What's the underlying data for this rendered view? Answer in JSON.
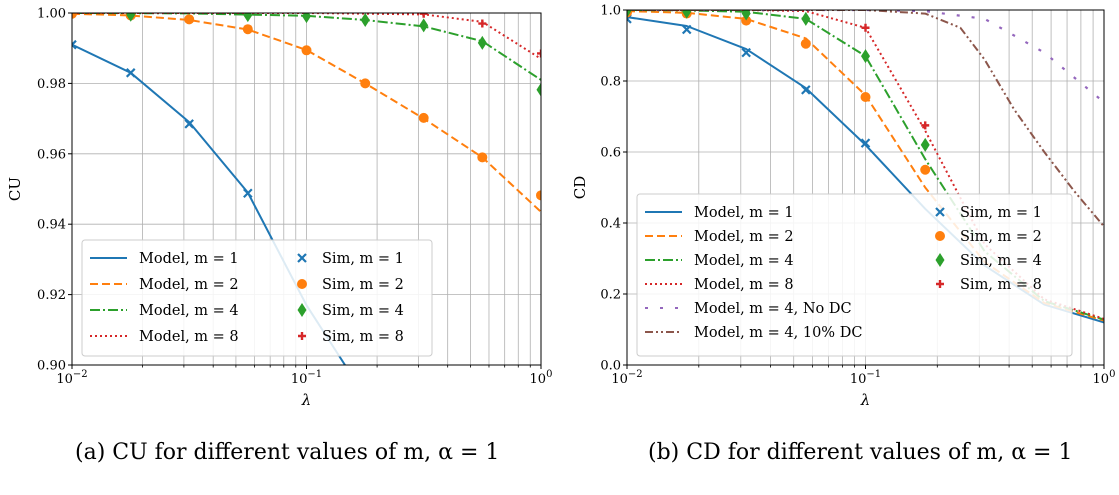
{
  "captions": [
    "(a) CU for different values of m, α = 1",
    "(b) CD for different values of m, α = 1"
  ],
  "colors": {
    "m1": "#1f77b4",
    "m2": "#ff7f0e",
    "m4": "#2ca02c",
    "m8": "#d62728",
    "nodc": "#9467bd",
    "dc10": "#8c564b"
  },
  "chart_data": [
    {
      "type": "line",
      "xlabel": "λ",
      "ylabel": "CU",
      "xscale": "log",
      "xlim": [
        0.01,
        1
      ],
      "ylim": [
        0.9,
        1.0
      ],
      "grid": true,
      "legend_position": "lower-left",
      "xticks": [
        "10−2",
        "10−1",
        "100"
      ],
      "yticks": [
        "0.90",
        "0.92",
        "0.94",
        "0.96",
        "0.98",
        "1.00"
      ],
      "series": [
        {
          "name": "Model, m = 1",
          "key": "m1",
          "kind": "model",
          "style": "solid",
          "x": [
            0.01,
            0.0178,
            0.0316,
            0.0562,
            0.1,
            0.146
          ],
          "y": [
            0.991,
            0.983,
            0.969,
            0.949,
            0.917,
            0.9
          ]
        },
        {
          "name": "Model, m = 2",
          "key": "m2",
          "kind": "model",
          "style": "dashed",
          "x": [
            0.01,
            0.0178,
            0.0316,
            0.0562,
            0.1,
            0.178,
            0.316,
            0.562,
            1.0
          ],
          "y": [
            0.9998,
            0.9993,
            0.998,
            0.9953,
            0.9895,
            0.98,
            0.97,
            0.959,
            0.9435
          ]
        },
        {
          "name": "Model, m = 4",
          "key": "m4",
          "kind": "model",
          "style": "dashdot",
          "x": [
            0.01,
            0.0316,
            0.1,
            0.178,
            0.316,
            0.562,
            1.0
          ],
          "y": [
            1.0,
            0.9999,
            0.9992,
            0.998,
            0.9962,
            0.992,
            0.981
          ]
        },
        {
          "name": "Model, m = 8",
          "key": "m8",
          "kind": "model",
          "style": "dotted",
          "x": [
            0.01,
            0.1,
            0.316,
            0.562,
            1.0
          ],
          "y": [
            1.0,
            1.0,
            0.9996,
            0.9975,
            0.987
          ]
        },
        {
          "name": "Sim, m = 1",
          "key": "m1",
          "kind": "sim",
          "marker": "x",
          "x": [
            0.01,
            0.0178,
            0.0316,
            0.0562
          ],
          "y": [
            0.991,
            0.983,
            0.9685,
            0.9488
          ]
        },
        {
          "name": "Sim, m = 2",
          "key": "m2",
          "kind": "sim",
          "marker": "circle",
          "x": [
            0.01,
            0.0178,
            0.0316,
            0.0562,
            0.1,
            0.178,
            0.316,
            0.562,
            1.0
          ],
          "y": [
            0.9998,
            0.9993,
            0.9982,
            0.9954,
            0.9894,
            0.98,
            0.9702,
            0.959,
            0.9482
          ]
        },
        {
          "name": "Sim, m = 4",
          "key": "m4",
          "kind": "sim",
          "marker": "diamond",
          "x": [
            0.0178,
            0.0562,
            0.1,
            0.178,
            0.316,
            0.562,
            1.0
          ],
          "y": [
            0.9995,
            0.9994,
            0.9991,
            0.998,
            0.9965,
            0.9915,
            0.9782
          ]
        },
        {
          "name": "Sim, m = 8",
          "key": "m8",
          "kind": "sim",
          "marker": "plus",
          "x": [
            0.316,
            0.562,
            1.0
          ],
          "y": [
            0.9998,
            0.997,
            0.9885
          ]
        }
      ]
    },
    {
      "type": "line",
      "xlabel": "λ",
      "ylabel": "CD",
      "xscale": "log",
      "xlim": [
        0.01,
        1
      ],
      "ylim": [
        0.0,
        1.0
      ],
      "grid": true,
      "legend_position": "lower-left",
      "xticks": [
        "10−2",
        "10−1",
        "100"
      ],
      "yticks": [
        "0.0",
        "0.2",
        "0.4",
        "0.6",
        "0.8",
        "1.0"
      ],
      "series": [
        {
          "name": "Model, m = 1",
          "key": "m1",
          "kind": "model",
          "style": "solid",
          "x": [
            0.01,
            0.0178,
            0.0316,
            0.0562,
            0.1,
            0.178,
            0.316,
            0.562,
            1.0
          ],
          "y": [
            0.98,
            0.955,
            0.89,
            0.78,
            0.62,
            0.44,
            0.28,
            0.17,
            0.12
          ]
        },
        {
          "name": "Model, m = 2",
          "key": "m2",
          "kind": "model",
          "style": "dashed",
          "x": [
            0.01,
            0.0178,
            0.0316,
            0.0562,
            0.1,
            0.178,
            0.316,
            0.562,
            1.0
          ],
          "y": [
            0.997,
            0.992,
            0.975,
            0.92,
            0.76,
            0.5,
            0.29,
            0.175,
            0.125
          ]
        },
        {
          "name": "Model, m = 4",
          "key": "m4",
          "kind": "model",
          "style": "dashdot",
          "x": [
            0.01,
            0.0178,
            0.0316,
            0.0562,
            0.1,
            0.178,
            0.316,
            0.562,
            1.0
          ],
          "y": [
            1.0,
            0.999,
            0.995,
            0.975,
            0.87,
            0.58,
            0.32,
            0.18,
            0.128
          ]
        },
        {
          "name": "Model, m = 8",
          "key": "m8",
          "kind": "model",
          "style": "dotted",
          "x": [
            0.01,
            0.0316,
            0.0562,
            0.1,
            0.178,
            0.316,
            0.562,
            1.0
          ],
          "y": [
            1.0,
            1.0,
            0.997,
            0.95,
            0.66,
            0.34,
            0.185,
            0.13
          ]
        },
        {
          "name": "Model, m = 4, No DC",
          "key": "nodc",
          "kind": "model",
          "style": "loosedash",
          "x": [
            0.01,
            0.1,
            0.178,
            0.316,
            0.562,
            1.0
          ],
          "y": [
            1.0,
            1.0,
            0.997,
            0.975,
            0.88,
            0.74
          ]
        },
        {
          "name": "Model, m = 4, 10% DC",
          "key": "dc10",
          "kind": "model",
          "style": "dashdotdot",
          "x": [
            0.01,
            0.1,
            0.178,
            0.25,
            0.316,
            0.42,
            0.562,
            0.75,
            1.0
          ],
          "y": [
            1.0,
            1.0,
            0.99,
            0.95,
            0.86,
            0.72,
            0.6,
            0.49,
            0.39
          ]
        },
        {
          "name": "Sim, m = 1",
          "key": "m1",
          "kind": "sim",
          "marker": "x",
          "x": [
            0.01,
            0.0178,
            0.0316,
            0.0562,
            0.1
          ],
          "y": [
            0.975,
            0.945,
            0.88,
            0.775,
            0.625
          ]
        },
        {
          "name": "Sim, m = 2",
          "key": "m2",
          "kind": "sim",
          "marker": "circle",
          "x": [
            0.01,
            0.0178,
            0.0316,
            0.0562,
            0.1,
            0.178
          ],
          "y": [
            0.993,
            0.99,
            0.97,
            0.905,
            0.755,
            0.55
          ]
        },
        {
          "name": "Sim, m = 4",
          "key": "m4",
          "kind": "sim",
          "marker": "diamond",
          "x": [
            0.01,
            0.0178,
            0.0316,
            0.0562,
            0.1,
            0.178
          ],
          "y": [
            0.998,
            0.995,
            0.99,
            0.975,
            0.87,
            0.62
          ]
        },
        {
          "name": "Sim, m = 8",
          "key": "m8",
          "kind": "sim",
          "marker": "plus",
          "x": [
            0.1,
            0.178
          ],
          "y": [
            0.95,
            0.675
          ]
        }
      ]
    }
  ]
}
